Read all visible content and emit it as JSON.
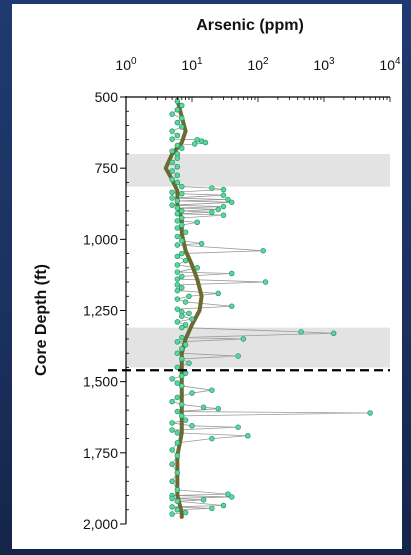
{
  "chart_data": {
    "type": "scatter",
    "title": "",
    "xlabel": "Arsenic (ppm)",
    "ylabel": "Core Depth (ft)",
    "x_scale": "log",
    "xlim": [
      1,
      10000
    ],
    "ylim": [
      500,
      2000
    ],
    "y_inverted": true,
    "x_tick_labels": [
      {
        "base": "10",
        "exp": "0"
      },
      {
        "base": "10",
        "exp": "1"
      },
      {
        "base": "10",
        "exp": "2"
      },
      {
        "base": "10",
        "exp": "3"
      },
      {
        "base": "10",
        "exp": "4"
      }
    ],
    "y_tick_labels": [
      "500",
      "750",
      "1,000",
      "1,250",
      "1,500",
      "1,750",
      "2,000"
    ],
    "y_tick_values": [
      500,
      750,
      1000,
      1250,
      1500,
      1750,
      2000
    ],
    "shaded_bands": [
      {
        "from": 700,
        "to": 815
      },
      {
        "from": 1310,
        "to": 1450
      }
    ],
    "reference_line": {
      "depth": 1460,
      "style": "dashed"
    },
    "grid": false,
    "colors": {
      "points_fill": "#5fd3a0",
      "points_stroke": "#1a9a62",
      "connector": "#9a9a9a",
      "trend": "#6b6a30",
      "band": "#e3e3e3",
      "background": "#1e3768"
    },
    "series": [
      {
        "name": "",
        "points": [
          [
            6,
            515
          ],
          [
            7,
            530
          ],
          [
            6,
            545
          ],
          [
            5,
            560
          ],
          [
            7,
            575
          ],
          [
            6,
            590
          ],
          [
            7,
            605
          ],
          [
            5,
            620
          ],
          [
            6,
            635
          ],
          [
            5,
            648
          ],
          [
            12,
            650
          ],
          [
            14,
            655
          ],
          [
            16,
            660
          ],
          [
            11,
            665
          ],
          [
            6,
            670
          ],
          [
            7,
            680
          ],
          [
            5,
            690
          ],
          [
            6,
            700
          ],
          [
            6,
            715
          ],
          [
            5,
            730
          ],
          [
            6,
            745
          ],
          [
            5,
            760
          ],
          [
            6,
            775
          ],
          [
            5,
            790
          ],
          [
            6,
            800
          ],
          [
            7,
            815
          ],
          [
            20,
            820
          ],
          [
            30,
            825
          ],
          [
            5,
            835
          ],
          [
            7,
            840
          ],
          [
            30,
            845
          ],
          [
            5,
            855
          ],
          [
            35,
            860
          ],
          [
            6,
            865
          ],
          [
            40,
            870
          ],
          [
            5,
            880
          ],
          [
            30,
            885
          ],
          [
            6,
            890
          ],
          [
            25,
            895
          ],
          [
            7,
            900
          ],
          [
            20,
            905
          ],
          [
            6,
            910
          ],
          [
            30,
            915
          ],
          [
            7,
            925
          ],
          [
            6,
            935
          ],
          [
            12,
            940
          ],
          [
            7,
            950
          ],
          [
            6,
            960
          ],
          [
            8,
            975
          ],
          [
            6,
            990
          ],
          [
            7,
            1005
          ],
          [
            14,
            1015
          ],
          [
            6,
            1020
          ],
          [
            120,
            1040
          ],
          [
            7,
            1050
          ],
          [
            6,
            1060
          ],
          [
            8,
            1075
          ],
          [
            6,
            1090
          ],
          [
            12,
            1100
          ],
          [
            6,
            1115
          ],
          [
            40,
            1120
          ],
          [
            7,
            1130
          ],
          [
            6,
            1140
          ],
          [
            130,
            1150
          ],
          [
            6,
            1160
          ],
          [
            7,
            1170
          ],
          [
            6,
            1180
          ],
          [
            25,
            1190
          ],
          [
            9,
            1200
          ],
          [
            6,
            1210
          ],
          [
            8,
            1220
          ],
          [
            40,
            1235
          ],
          [
            6,
            1245
          ],
          [
            7,
            1255
          ],
          [
            9,
            1260
          ],
          [
            7,
            1270
          ],
          [
            10,
            1280
          ],
          [
            6,
            1290
          ],
          [
            8,
            1300
          ],
          [
            7,
            1310
          ],
          [
            450,
            1325
          ],
          [
            1400,
            1330
          ],
          [
            7,
            1345
          ],
          [
            60,
            1350
          ],
          [
            6,
            1360
          ],
          [
            8,
            1370
          ],
          [
            7,
            1385
          ],
          [
            6,
            1400
          ],
          [
            50,
            1410
          ],
          [
            7,
            1420
          ],
          [
            9,
            1435
          ],
          [
            6,
            1450
          ],
          [
            8,
            1470
          ],
          [
            7,
            1480
          ],
          [
            5,
            1490
          ],
          [
            6,
            1505
          ],
          [
            7,
            1515
          ],
          [
            20,
            1530
          ],
          [
            10,
            1540
          ],
          [
            6,
            1555
          ],
          [
            5,
            1570
          ],
          [
            7,
            1580
          ],
          [
            15,
            1590
          ],
          [
            25,
            1595
          ],
          [
            6,
            1605
          ],
          [
            5000,
            1610
          ],
          [
            7,
            1620
          ],
          [
            8,
            1635
          ],
          [
            5,
            1645
          ],
          [
            10,
            1655
          ],
          [
            50,
            1660
          ],
          [
            5,
            1670
          ],
          [
            6,
            1680
          ],
          [
            70,
            1690
          ],
          [
            20,
            1700
          ],
          [
            6,
            1715
          ],
          [
            5,
            1740
          ],
          [
            6,
            1760
          ],
          [
            5,
            1790
          ],
          [
            6,
            1820
          ],
          [
            5,
            1850
          ],
          [
            6,
            1880
          ],
          [
            35,
            1895
          ],
          [
            5,
            1900
          ],
          [
            40,
            1905
          ],
          [
            5,
            1910
          ],
          [
            15,
            1915
          ],
          [
            6,
            1920
          ],
          [
            30,
            1935
          ],
          [
            5,
            1940
          ],
          [
            20,
            1945
          ],
          [
            6,
            1950
          ],
          [
            8,
            1960
          ],
          [
            5,
            1965
          ]
        ]
      }
    ],
    "trend_line": [
      [
        6,
        510
      ],
      [
        7,
        570
      ],
      [
        8,
        620
      ],
      [
        7,
        660
      ],
      [
        5,
        700
      ],
      [
        4,
        750
      ],
      [
        5,
        790
      ],
      [
        6,
        830
      ],
      [
        6,
        880
      ],
      [
        7,
        930
      ],
      [
        7,
        980
      ],
      [
        8,
        1040
      ],
      [
        10,
        1090
      ],
      [
        12,
        1140
      ],
      [
        14,
        1200
      ],
      [
        13,
        1250
      ],
      [
        10,
        1300
      ],
      [
        8,
        1350
      ],
      [
        7,
        1400
      ],
      [
        7,
        1460
      ],
      [
        7,
        1520
      ],
      [
        7,
        1600
      ],
      [
        7,
        1680
      ],
      [
        6,
        1760
      ],
      [
        6,
        1840
      ],
      [
        6,
        1900
      ],
      [
        7,
        1960
      ],
      [
        7,
        1975
      ]
    ]
  }
}
